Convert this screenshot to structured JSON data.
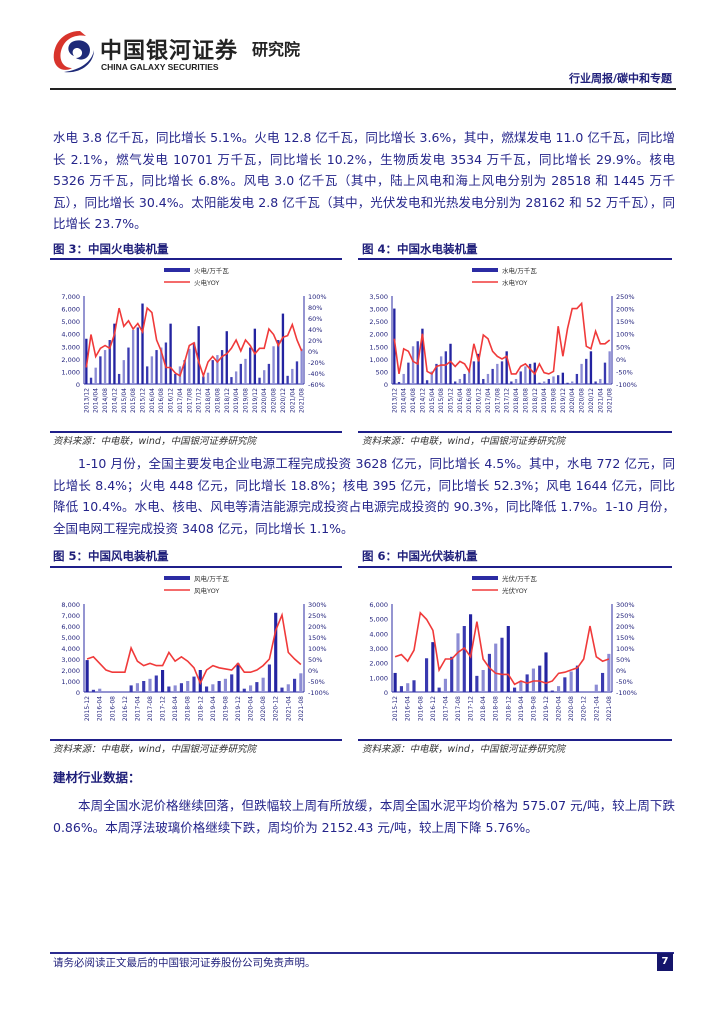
{
  "header": {
    "brand_cn": "中国银河证券",
    "brand_en": "CHINA GALAXY SECURITIES",
    "institute": "研究院",
    "report_type": "行业周报/碳中和专题",
    "colors": {
      "logo_red": "#d8342c",
      "logo_navy": "#1e2a78"
    }
  },
  "paragraphs": {
    "p1": "水电 3.8 亿千瓦，同比增长 5.1%。火电 12.8 亿千瓦，同比增长 3.6%，其中，燃煤发电 11.0 亿千瓦，同比增长 2.1%，燃气发电 10701 万千瓦，同比增长 10.2%，生物质发电 3534 万千瓦，同比增长 29.9%。核电 5326 万千瓦，同比增长 6.8%。风电 3.0 亿千瓦（其中，陆上风电和海上风电分别为 28518 和 1445 万千瓦），同比增长 30.4%。太阳能发电 2.8 亿千瓦（其中，光伏发电和光热发电分别为 28162 和 52 万千瓦），同比增长 23.7%。",
    "p2": "1-10 月份，全国主要发电企业电源工程完成投资 3628 亿元，同比增长 4.5%。其中，水电 772 亿元，同比增长 8.4%；火电 448 亿元，同比增长 18.8%；核电 395 亿元，同比增长 52.3%；风电 1644 亿元，同比降低 10.4%。水电、核电、风电等清洁能源完成投资占电源完成投资的 90.3%，同比降低 1.7%。1-10 月份，全国电网工程完成投资 3408 亿元，同比增长 1.1%。",
    "section_heading": "建材行业数据：",
    "p3": "本周全国水泥价格继续回落，但跌幅较上周有所放缓，本周全国水泥平均价格为 575.07 元/吨，较上周下跌 0.86%。本周浮法玻璃价格继续下跌，周均价为 2152.43 元/吨，较上周下降 5.76%。"
  },
  "figures": [
    {
      "title": "图 3：中国火电装机量",
      "source": "资料来源：中电联，wind，中国银河证券研究院"
    },
    {
      "title": "图 4：中国水电装机量",
      "source": "资料来源：中电联，wind，中国银河证券研究院"
    },
    {
      "title": "图 5：中国风电装机量",
      "source": "资料来源：中电联，wind，中国银河证券研究院"
    },
    {
      "title": "图 6：中国光伏装机量",
      "source": "资料来源：中电联，wind，中国银河证券研究院"
    }
  ],
  "chart_data": [
    {
      "type": "bar+line",
      "legend": [
        "火电/万千瓦",
        "火电YOY"
      ],
      "legend_placement": "top",
      "x_ticks": [
        "2013/12",
        "2014/04",
        "2014/08",
        "2014/12",
        "2015/04",
        "2015/08",
        "2015/12",
        "2016/04",
        "2016/08",
        "2016/12",
        "2017/04",
        "2017/08",
        "2017/12",
        "2018/04",
        "2018/08",
        "2018/12",
        "2019/04",
        "2019/08",
        "2019/12",
        "2020/04",
        "2020/08",
        "2020/12",
        "2021/04",
        "2021/08"
      ],
      "y_left": {
        "range": [
          0,
          7000
        ],
        "ticks": [
          "0",
          "1,000",
          "2,000",
          "3,000",
          "4,000",
          "5,000",
          "6,000",
          "7,000"
        ]
      },
      "y_right": {
        "range": [
          -60,
          100
        ],
        "ticks": [
          "-60%",
          "-40%",
          "-20%",
          "0%",
          "20%",
          "40%",
          "60%",
          "80%",
          "100%"
        ]
      },
      "bars": [
        3600,
        500,
        1300,
        2200,
        2700,
        3500,
        4800,
        800,
        1900,
        2900,
        4300,
        4500,
        6400,
        1400,
        2200,
        2700,
        2900,
        3300,
        4800,
        800,
        1400,
        1900,
        2800,
        3300,
        4600,
        600,
        900,
        1900,
        2300,
        2700,
        4200,
        550,
        1000,
        1600,
        2000,
        2900,
        4400,
        500,
        1100,
        1600,
        3000,
        3500,
        5600,
        650,
        1200,
        1800,
        2800
      ],
      "line": [
        -30,
        30,
        -10,
        5,
        10,
        5,
        30,
        78,
        45,
        55,
        40,
        50,
        35,
        78,
        70,
        20,
        0,
        -30,
        -30,
        -40,
        -45,
        -20,
        10,
        15,
        -20,
        -45,
        -20,
        -10,
        -20,
        -10,
        -5,
        5,
        20,
        0,
        20,
        10,
        -5,
        5,
        5,
        40,
        30,
        10,
        25,
        28,
        48,
        20,
        0
      ],
      "colors": {
        "bar": "#2b2ba3",
        "line": "#f03a3a"
      }
    },
    {
      "type": "bar+line",
      "legend": [
        "水电/万千瓦",
        "水电YOY"
      ],
      "legend_placement": "top",
      "x_ticks": [
        "2013/12",
        "2014/04",
        "2014/08",
        "2014/12",
        "2015/04",
        "2015/08",
        "2015/12",
        "2016/04",
        "2016/08",
        "2016/12",
        "2017/04",
        "2017/08",
        "2017/12",
        "2018/04",
        "2018/08",
        "2018/12",
        "2019/04",
        "2019/08",
        "2019/12",
        "2020/04",
        "2020/08",
        "2020/12",
        "2021/04",
        "2021/08"
      ],
      "y_left": {
        "range": [
          0,
          3500
        ],
        "ticks": [
          "0",
          "500",
          "1,000",
          "1,500",
          "2,000",
          "2,500",
          "3,000",
          "3,500"
        ]
      },
      "y_right": {
        "range": [
          -100,
          250
        ],
        "ticks": [
          "-100%",
          "-50%",
          "0%",
          "50%",
          "100%",
          "150%",
          "200%",
          "250%"
        ]
      },
      "bars": [
        3000,
        80,
        400,
        850,
        1500,
        1700,
        2200,
        150,
        500,
        800,
        1100,
        1300,
        1600,
        100,
        200,
        400,
        600,
        900,
        1200,
        200,
        400,
        600,
        800,
        900,
        1300,
        100,
        200,
        500,
        700,
        800,
        850,
        50,
        100,
        200,
        300,
        350,
        450,
        50,
        100,
        400,
        800,
        1000,
        1300,
        100,
        200,
        850,
        1300
      ],
      "line": [
        80,
        -60,
        40,
        30,
        -10,
        -20,
        100,
        -50,
        -60,
        -30,
        -25,
        -25,
        -10,
        -30,
        -10,
        -20,
        -50,
        60,
        -10,
        95,
        80,
        30,
        10,
        0,
        10,
        -60,
        -60,
        -30,
        -20,
        -40,
        -60,
        -20,
        -55,
        -60,
        -50,
        130,
        10,
        120,
        200,
        200,
        220,
        50,
        40,
        110,
        60,
        60,
        75
      ],
      "colors": {
        "bar": "#2b2ba3",
        "line": "#f03a3a"
      }
    },
    {
      "type": "bar+line",
      "legend": [
        "风电/万千瓦",
        "风电YOY"
      ],
      "legend_placement": "top",
      "x_ticks": [
        "2015-12",
        "2016-04",
        "2016-08",
        "2016-12",
        "2017-04",
        "2017-08",
        "2017-12",
        "2018-04",
        "2018-08",
        "2018-12",
        "2019-04",
        "2019-08",
        "2019-12",
        "2020-04",
        "2020-08",
        "2020-12",
        "2021-04",
        "2021-08"
      ],
      "y_left": {
        "range": [
          0,
          8000
        ],
        "ticks": [
          "0",
          "1,000",
          "2,000",
          "3,000",
          "4,000",
          "5,000",
          "6,000",
          "7,000",
          "8,000"
        ]
      },
      "y_right": {
        "range": [
          -100,
          300
        ],
        "ticks": [
          "-100%",
          "-50%",
          "0%",
          "50%",
          "100%",
          "150%",
          "200%",
          "250%",
          "300%"
        ]
      },
      "bars": [
        2900,
        200,
        300,
        0,
        0,
        0,
        0,
        600,
        800,
        1000,
        1200,
        1500,
        2000,
        500,
        600,
        800,
        1000,
        1400,
        2000,
        500,
        700,
        1000,
        1200,
        1600,
        2600,
        300,
        600,
        900,
        1300,
        2500,
        7200,
        400,
        700,
        1200,
        1700
      ],
      "line": [
        50,
        60,
        30,
        0,
        -10,
        -10,
        -10,
        100,
        40,
        20,
        30,
        20,
        20,
        80,
        40,
        60,
        40,
        10,
        -60,
        0,
        20,
        10,
        5,
        0,
        30,
        -10,
        -10,
        0,
        20,
        50,
        180,
        250,
        80,
        50,
        25
      ],
      "colors": {
        "bar": "#2b2ba3",
        "line": "#f03a3a"
      }
    },
    {
      "type": "bar+line",
      "legend": [
        "光伏/万千瓦",
        "光伏YOY"
      ],
      "legend_placement": "top",
      "x_ticks": [
        "2015-12",
        "2016-04",
        "2016-08",
        "2016-12",
        "2017-04",
        "2017-08",
        "2017-12",
        "2018-04",
        "2018-08",
        "2018-12",
        "2019-04",
        "2019-08",
        "2019-12",
        "2020-04",
        "2020-08",
        "2020-12",
        "2021-04",
        "2021-08"
      ],
      "y_left": {
        "range": [
          0,
          6000
        ],
        "ticks": [
          "0",
          "1,000",
          "2,000",
          "3,000",
          "4,000",
          "5,000",
          "6,000"
        ]
      },
      "y_right": {
        "range": [
          -100,
          300
        ],
        "ticks": [
          "-100%",
          "-50%",
          "0%",
          "50%",
          "100%",
          "150%",
          "200%",
          "250%",
          "300%"
        ]
      },
      "bars": [
        1300,
        400,
        600,
        800,
        0,
        2300,
        3400,
        300,
        900,
        2400,
        4000,
        4500,
        5300,
        1100,
        1500,
        2600,
        3300,
        3700,
        4500,
        300,
        700,
        1200,
        1600,
        1800,
        2700,
        100,
        400,
        1000,
        1400,
        1800,
        0,
        0,
        500,
        1300,
        2600
      ],
      "line": [
        60,
        70,
        40,
        90,
        260,
        230,
        180,
        0,
        50,
        50,
        80,
        100,
        60,
        220,
        50,
        10,
        -15,
        -20,
        -20,
        -65,
        -50,
        -60,
        -50,
        -50,
        -60,
        -50,
        -15,
        -10,
        0,
        10,
        50,
        200,
        60,
        40,
        50
      ],
      "colors": {
        "bar": "#2b2ba3",
        "line": "#f03a3a"
      }
    }
  ],
  "footer": {
    "disclaimer": "请务必阅读正文最后的中国银河证券股份公司免责声明。",
    "page_number": "7"
  }
}
